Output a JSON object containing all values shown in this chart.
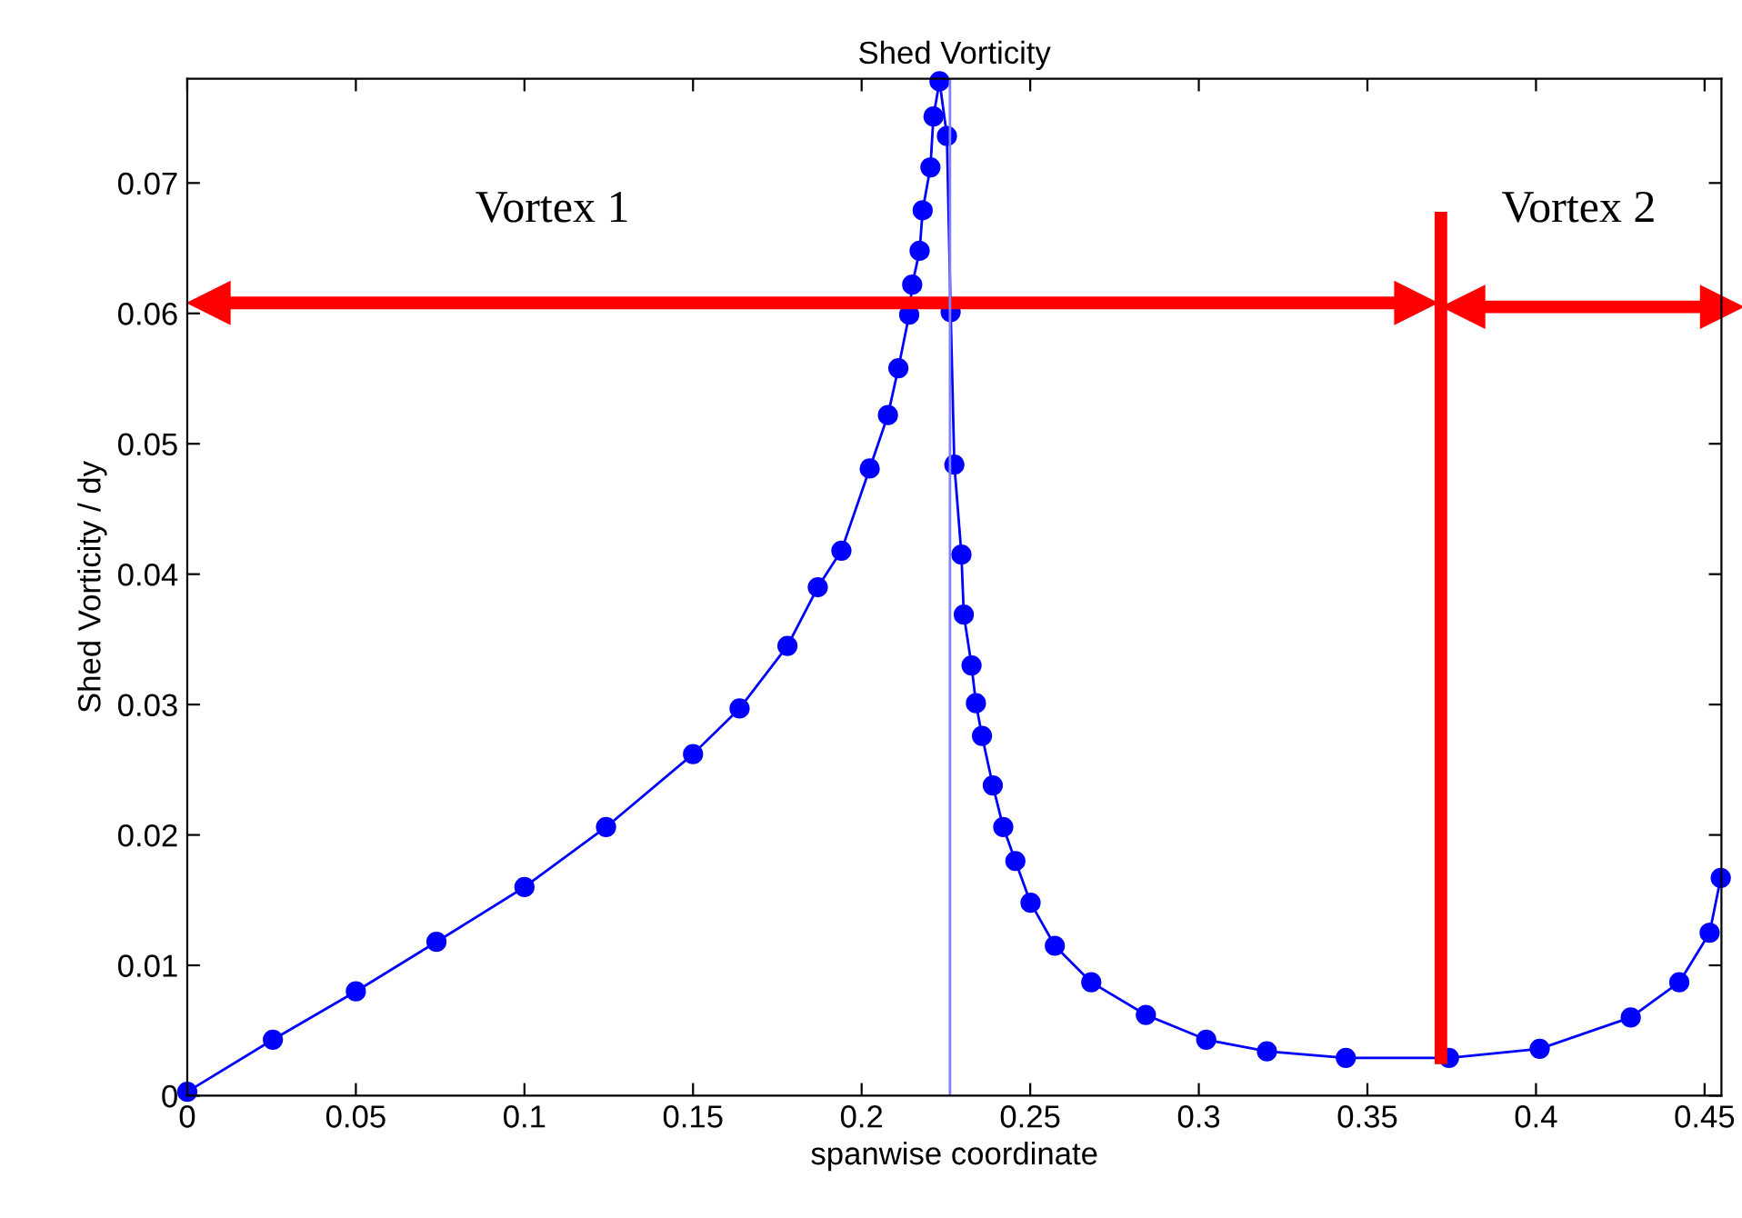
{
  "chart_data": {
    "type": "line",
    "title": "Shed Vorticity",
    "xlabel": "spanwise coordinate",
    "ylabel": "Shed Vorticity / dy",
    "xlim": [
      0,
      0.455
    ],
    "ylim": [
      0,
      0.078
    ],
    "xticks": [
      0,
      0.05,
      0.1,
      0.15,
      0.2,
      0.25,
      0.3,
      0.35,
      0.4,
      0.45
    ],
    "yticks": [
      0,
      0.01,
      0.02,
      0.03,
      0.04,
      0.05,
      0.06,
      0.07
    ],
    "grid": false,
    "legend": false,
    "marker": "circle",
    "line_style": "solid",
    "series": [
      {
        "color": "#0000ff",
        "x": [
          0,
          0.0254,
          0.05,
          0.0739,
          0.1,
          0.1242,
          0.15,
          0.1638,
          0.178,
          0.187,
          0.194,
          0.2024,
          0.2078,
          0.2109,
          0.2141,
          0.215,
          0.2172,
          0.2181,
          0.2204,
          0.2213,
          0.2231,
          0.2253,
          0.2264,
          0.2275,
          0.2296,
          0.2303,
          0.2326,
          0.2339,
          0.2357,
          0.2389,
          0.242,
          0.2456,
          0.2501,
          0.2573,
          0.2681,
          0.2843,
          0.3022,
          0.3202,
          0.3436,
          0.3742,
          0.4011,
          0.4281,
          0.4425,
          0.4515,
          0.4548
        ],
        "values": [
          0.0003,
          0.0043,
          0.008,
          0.0118,
          0.016,
          0.0206,
          0.0262,
          0.0297,
          0.0345,
          0.039,
          0.0418,
          0.0481,
          0.0522,
          0.0558,
          0.0599,
          0.0622,
          0.0648,
          0.0679,
          0.0712,
          0.0751,
          0.0778,
          0.0736,
          0.0601,
          0.0484,
          0.0415,
          0.0369,
          0.033,
          0.0301,
          0.0276,
          0.0238,
          0.0206,
          0.018,
          0.0148,
          0.0115,
          0.0087,
          0.0062,
          0.0043,
          0.0034,
          0.0029,
          0.0029,
          0.0036,
          0.006,
          0.0087,
          0.0125,
          0.0167
        ]
      },
      {
        "color": "#ff0000",
        "marker": "none",
        "x": [
          0.3718,
          0.3718
        ],
        "values": [
          0.0029,
          0.0673
        ]
      },
      {
        "color": "#ff0000",
        "marker": "triangle",
        "x": [
          0.0065,
          0.3643
        ],
        "values": [
          0.0608,
          0.0608
        ]
      },
      {
        "color": "#ff0000",
        "marker": "triangle",
        "x": [
          0.3786,
          0.455
        ],
        "values": [
          0.0605,
          0.0605
        ]
      }
    ],
    "ref_lines": [
      {
        "axis": "x",
        "value": 0.2262,
        "color": "#8080ff"
      }
    ],
    "annotations": [
      "Vortex 1",
      "Vortex 2"
    ]
  }
}
